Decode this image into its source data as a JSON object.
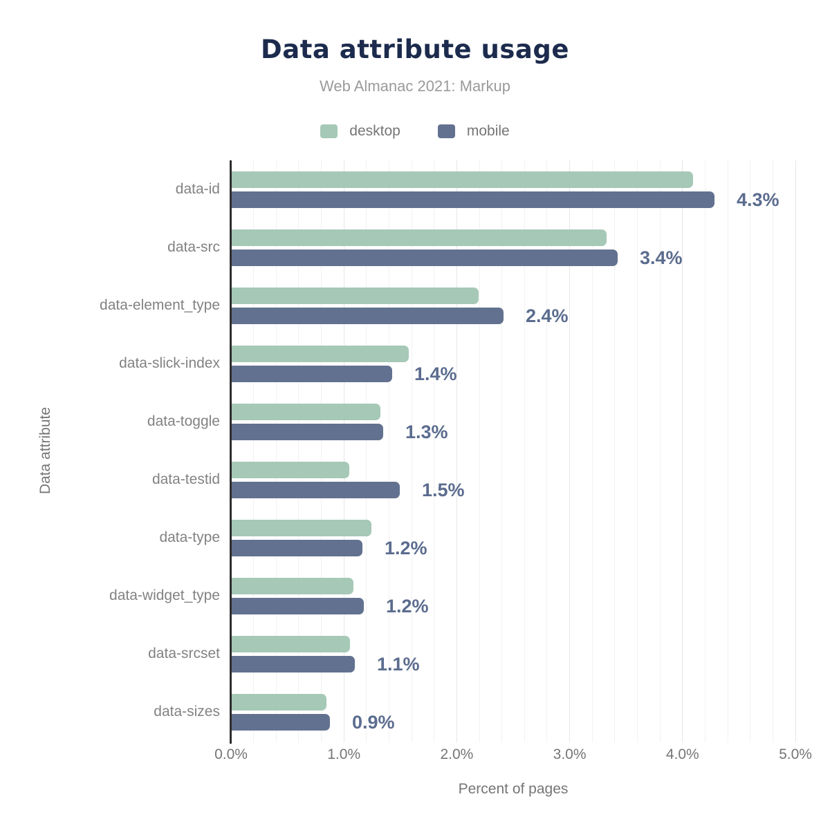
{
  "header": {
    "title": "Data attribute usage",
    "subtitle": "Web Almanac 2021: Markup"
  },
  "legend": {
    "items": [
      {
        "label": "desktop",
        "color": "#a6c8b7"
      },
      {
        "label": "mobile",
        "color": "#62718f"
      }
    ]
  },
  "chart_data": {
    "type": "bar",
    "orientation": "horizontal",
    "title": "Data attribute usage",
    "subtitle": "Web Almanac 2021: Markup",
    "xlabel": "Percent of pages",
    "ylabel": "Data attribute",
    "xlim": [
      0,
      5
    ],
    "x_ticks": [
      "0.0%",
      "1.0%",
      "2.0%",
      "3.0%",
      "4.0%",
      "5.0%"
    ],
    "grid": "vertical; minor every 0.2%, major every 1.0%",
    "legend_position": "top",
    "categories": [
      "data-id",
      "data-src",
      "data-element_type",
      "data-slick-index",
      "data-toggle",
      "data-testid",
      "data-type",
      "data-widget_type",
      "data-srcset",
      "data-sizes"
    ],
    "series": [
      {
        "name": "desktop",
        "color": "#a6c8b7",
        "values": [
          4.09,
          3.32,
          2.19,
          1.57,
          1.32,
          1.04,
          1.24,
          1.08,
          1.05,
          0.84
        ]
      },
      {
        "name": "mobile",
        "color": "#62718f",
        "values": [
          4.28,
          3.42,
          2.41,
          1.42,
          1.34,
          1.49,
          1.16,
          1.17,
          1.09,
          0.87
        ]
      }
    ],
    "value_labels": [
      "4.3%",
      "3.4%",
      "2.4%",
      "1.4%",
      "1.3%",
      "1.5%",
      "1.2%",
      "1.2%",
      "1.1%",
      "0.9%"
    ],
    "value_label_series": "mobile",
    "colors": {
      "title": "#1c2b4d",
      "subtitle": "#9a9a9a",
      "axis_text": "#757575",
      "value_label": "#5b6c8e",
      "axis_line": "#2d2d2d"
    }
  }
}
